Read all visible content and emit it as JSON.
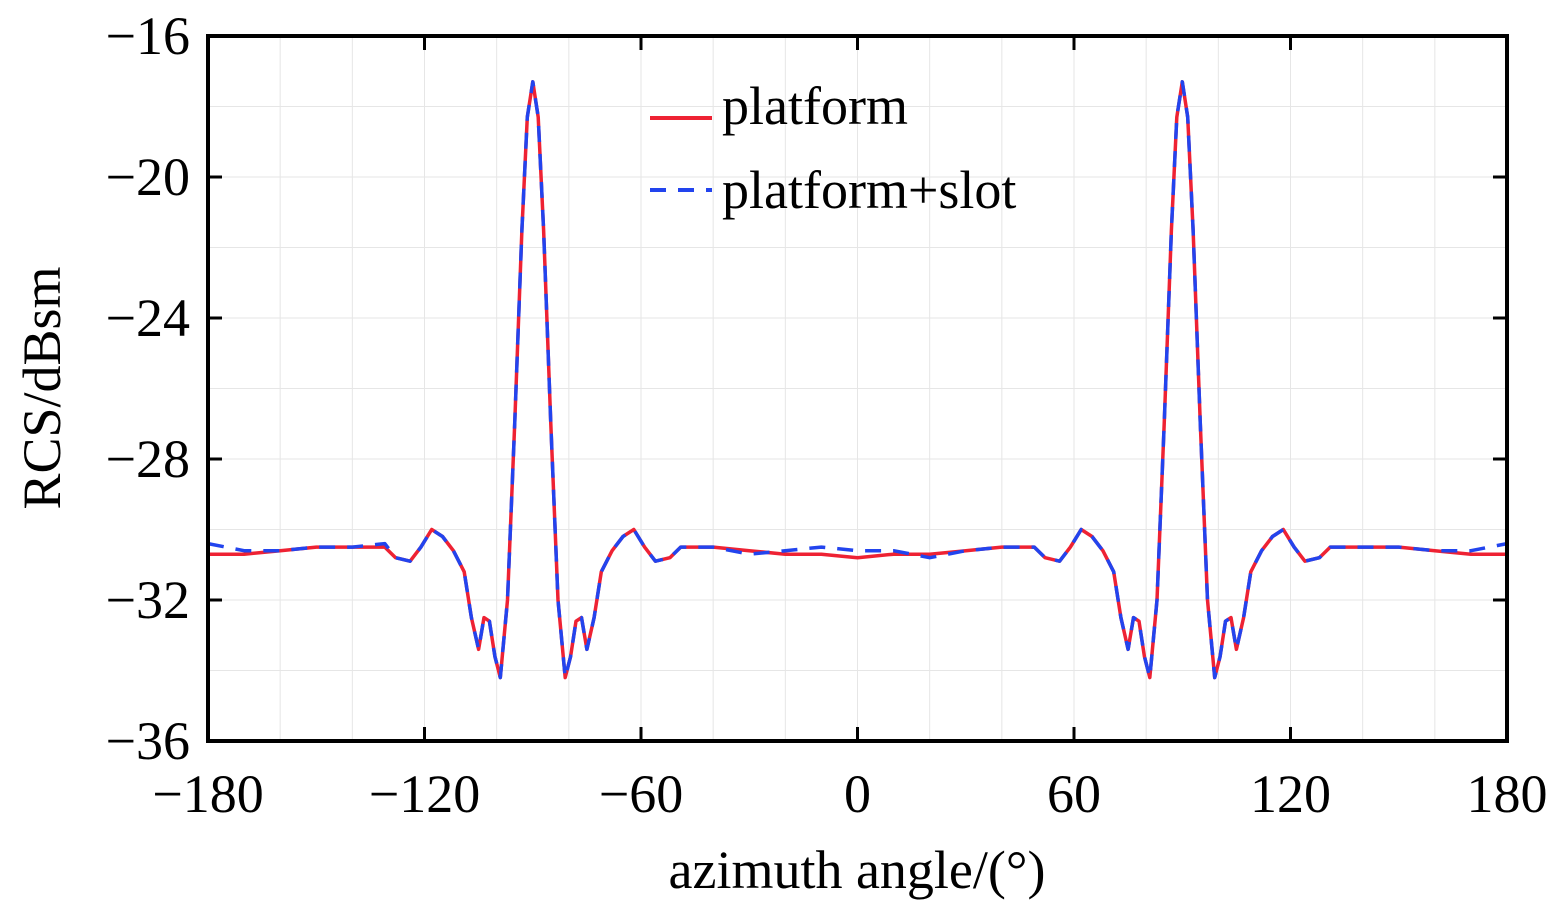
{
  "chart_data": {
    "type": "line",
    "title": "",
    "xlabel": "azimuth angle/(°)",
    "ylabel": "RCS/dBsm",
    "xlim": [
      -180,
      180
    ],
    "ylim": [
      -36,
      -16
    ],
    "xticks": [
      -180,
      -120,
      -60,
      0,
      60,
      120,
      180
    ],
    "yticks": [
      -16,
      -20,
      -24,
      -28,
      -32,
      -36
    ],
    "xtick_labels": [
      "−180",
      "−120",
      "−60",
      "0",
      "60",
      "120",
      "180"
    ],
    "ytick_labels": [
      "−16",
      "−20",
      "−24",
      "−28",
      "−32",
      "−36"
    ],
    "grid": true,
    "legend_position": "top-center",
    "series": [
      {
        "name": "platform",
        "color": "#ee2233",
        "dash": "solid",
        "points": [
          [
            -180,
            -30.7
          ],
          [
            -170,
            -30.7
          ],
          [
            -160,
            -30.6
          ],
          [
            -150,
            -30.5
          ],
          [
            -140,
            -30.5
          ],
          [
            -131,
            -30.5
          ],
          [
            -128,
            -30.8
          ],
          [
            -124,
            -30.9
          ],
          [
            -121,
            -30.5
          ],
          [
            -118,
            -30.0
          ],
          [
            -115,
            -30.2
          ],
          [
            -112,
            -30.6
          ],
          [
            -109,
            -31.2
          ],
          [
            -107,
            -32.5
          ],
          [
            -105,
            -33.4
          ],
          [
            -103.5,
            -32.5
          ],
          [
            -102,
            -32.6
          ],
          [
            -100.5,
            -33.6
          ],
          [
            -99,
            -34.2
          ],
          [
            -97,
            -32.0
          ],
          [
            -95,
            -27.0
          ],
          [
            -93,
            -21.5
          ],
          [
            -91.5,
            -18.3
          ],
          [
            -90,
            -17.3
          ],
          [
            -88.5,
            -18.3
          ],
          [
            -87,
            -21.5
          ],
          [
            -85,
            -27.0
          ],
          [
            -83,
            -32.0
          ],
          [
            -81,
            -34.2
          ],
          [
            -79.5,
            -33.6
          ],
          [
            -78,
            -32.6
          ],
          [
            -76.5,
            -32.5
          ],
          [
            -75,
            -33.4
          ],
          [
            -73,
            -32.5
          ],
          [
            -71,
            -31.2
          ],
          [
            -68,
            -30.6
          ],
          [
            -65,
            -30.2
          ],
          [
            -62,
            -30.0
          ],
          [
            -59,
            -30.5
          ],
          [
            -56,
            -30.9
          ],
          [
            -52,
            -30.8
          ],
          [
            -49,
            -30.5
          ],
          [
            -40,
            -30.5
          ],
          [
            -30,
            -30.6
          ],
          [
            -20,
            -30.7
          ],
          [
            -10,
            -30.7
          ],
          [
            0,
            -30.8
          ],
          [
            10,
            -30.7
          ],
          [
            20,
            -30.7
          ],
          [
            30,
            -30.6
          ],
          [
            40,
            -30.5
          ],
          [
            49,
            -30.5
          ],
          [
            52,
            -30.8
          ],
          [
            56,
            -30.9
          ],
          [
            59,
            -30.5
          ],
          [
            62,
            -30.0
          ],
          [
            65,
            -30.2
          ],
          [
            68,
            -30.6
          ],
          [
            71,
            -31.2
          ],
          [
            73,
            -32.5
          ],
          [
            75,
            -33.4
          ],
          [
            76.5,
            -32.5
          ],
          [
            78,
            -32.6
          ],
          [
            79.5,
            -33.6
          ],
          [
            81,
            -34.2
          ],
          [
            83,
            -32.0
          ],
          [
            85,
            -27.0
          ],
          [
            87,
            -21.5
          ],
          [
            88.5,
            -18.3
          ],
          [
            90,
            -17.3
          ],
          [
            91.5,
            -18.3
          ],
          [
            93,
            -21.5
          ],
          [
            95,
            -27.0
          ],
          [
            97,
            -32.0
          ],
          [
            99,
            -34.2
          ],
          [
            100.5,
            -33.6
          ],
          [
            102,
            -32.6
          ],
          [
            103.5,
            -32.5
          ],
          [
            105,
            -33.4
          ],
          [
            107,
            -32.5
          ],
          [
            109,
            -31.2
          ],
          [
            112,
            -30.6
          ],
          [
            115,
            -30.2
          ],
          [
            118,
            -30.0
          ],
          [
            121,
            -30.5
          ],
          [
            124,
            -30.9
          ],
          [
            128,
            -30.8
          ],
          [
            131,
            -30.5
          ],
          [
            140,
            -30.5
          ],
          [
            150,
            -30.5
          ],
          [
            160,
            -30.6
          ],
          [
            170,
            -30.7
          ],
          [
            180,
            -30.7
          ]
        ]
      },
      {
        "name": "platform+slot",
        "color": "#2244ee",
        "dash": "dashed",
        "points": [
          [
            -180,
            -30.4
          ],
          [
            -170,
            -30.6
          ],
          [
            -160,
            -30.6
          ],
          [
            -150,
            -30.5
          ],
          [
            -140,
            -30.5
          ],
          [
            -131,
            -30.4
          ],
          [
            -128,
            -30.8
          ],
          [
            -124,
            -30.9
          ],
          [
            -121,
            -30.5
          ],
          [
            -118,
            -30.0
          ],
          [
            -115,
            -30.2
          ],
          [
            -112,
            -30.6
          ],
          [
            -109,
            -31.2
          ],
          [
            -107,
            -32.5
          ],
          [
            -105,
            -33.4
          ],
          [
            -103.5,
            -32.5
          ],
          [
            -102,
            -32.6
          ],
          [
            -100.5,
            -33.6
          ],
          [
            -99,
            -34.2
          ],
          [
            -97,
            -32.0
          ],
          [
            -95,
            -27.0
          ],
          [
            -93,
            -21.5
          ],
          [
            -91.5,
            -18.3
          ],
          [
            -90,
            -17.3
          ],
          [
            -88.5,
            -18.3
          ],
          [
            -87,
            -21.5
          ],
          [
            -85,
            -27.0
          ],
          [
            -83,
            -32.0
          ],
          [
            -81,
            -34.2
          ],
          [
            -79.5,
            -33.6
          ],
          [
            -78,
            -32.6
          ],
          [
            -76.5,
            -32.5
          ],
          [
            -75,
            -33.4
          ],
          [
            -73,
            -32.5
          ],
          [
            -71,
            -31.2
          ],
          [
            -68,
            -30.6
          ],
          [
            -65,
            -30.2
          ],
          [
            -62,
            -30.0
          ],
          [
            -59,
            -30.5
          ],
          [
            -56,
            -30.9
          ],
          [
            -52,
            -30.8
          ],
          [
            -49,
            -30.5
          ],
          [
            -40,
            -30.5
          ],
          [
            -30,
            -30.7
          ],
          [
            -20,
            -30.6
          ],
          [
            -10,
            -30.5
          ],
          [
            0,
            -30.6
          ],
          [
            10,
            -30.6
          ],
          [
            20,
            -30.8
          ],
          [
            30,
            -30.6
          ],
          [
            40,
            -30.5
          ],
          [
            49,
            -30.5
          ],
          [
            52,
            -30.8
          ],
          [
            56,
            -30.9
          ],
          [
            59,
            -30.5
          ],
          [
            62,
            -30.0
          ],
          [
            65,
            -30.2
          ],
          [
            68,
            -30.6
          ],
          [
            71,
            -31.2
          ],
          [
            73,
            -32.5
          ],
          [
            75,
            -33.4
          ],
          [
            76.5,
            -32.5
          ],
          [
            78,
            -32.6
          ],
          [
            79.5,
            -33.6
          ],
          [
            81,
            -34.2
          ],
          [
            83,
            -32.0
          ],
          [
            85,
            -27.0
          ],
          [
            87,
            -21.5
          ],
          [
            88.5,
            -18.3
          ],
          [
            90,
            -17.3
          ],
          [
            91.5,
            -18.3
          ],
          [
            93,
            -21.5
          ],
          [
            95,
            -27.0
          ],
          [
            97,
            -32.0
          ],
          [
            99,
            -34.2
          ],
          [
            100.5,
            -33.6
          ],
          [
            102,
            -32.6
          ],
          [
            103.5,
            -32.5
          ],
          [
            105,
            -33.4
          ],
          [
            107,
            -32.5
          ],
          [
            109,
            -31.2
          ],
          [
            112,
            -30.6
          ],
          [
            115,
            -30.2
          ],
          [
            118,
            -30.0
          ],
          [
            121,
            -30.5
          ],
          [
            124,
            -30.9
          ],
          [
            128,
            -30.8
          ],
          [
            131,
            -30.5
          ],
          [
            140,
            -30.5
          ],
          [
            150,
            -30.5
          ],
          [
            160,
            -30.6
          ],
          [
            170,
            -30.6
          ],
          [
            180,
            -30.4
          ]
        ]
      }
    ]
  }
}
